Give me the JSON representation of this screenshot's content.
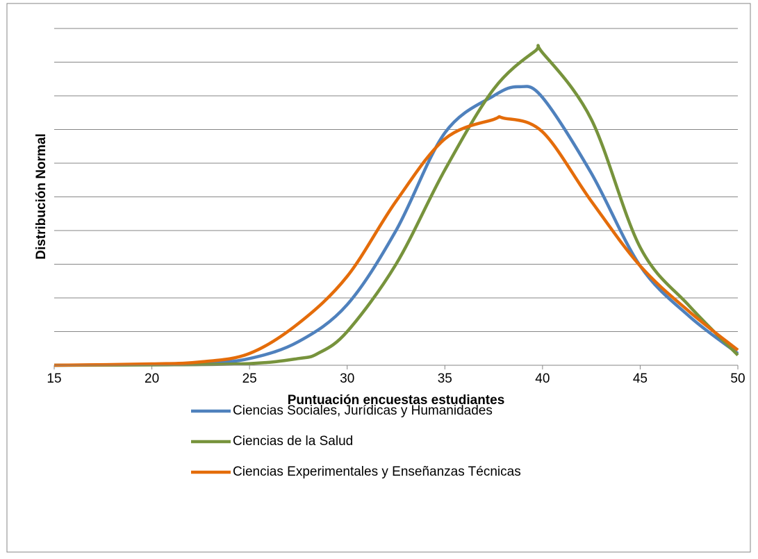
{
  "chart_data": {
    "type": "line",
    "x_label": "Puntuación encuestas estudiantes",
    "y_label": "Distribución Normal",
    "xlim": [
      15,
      50
    ],
    "xticks": [
      15,
      20,
      25,
      30,
      35,
      40,
      45,
      50
    ],
    "ylim": [
      0,
      10
    ],
    "yticks": [
      0,
      1,
      2,
      3,
      4,
      5,
      6,
      7,
      8,
      9,
      10
    ],
    "grid": true,
    "legend": "bottom",
    "series": [
      {
        "name": "Ciencias Sociales, Jurídicas y Humanidades",
        "color": "#4f81bd",
        "x": [
          15,
          20,
          22.5,
          25,
          27.5,
          30,
          32.5,
          35,
          37.5,
          38.8,
          40,
          42.5,
          45,
          47.5,
          50
        ],
        "values": [
          0,
          0.02,
          0.04,
          0.2,
          0.7,
          1.8,
          4.0,
          6.9,
          8.0,
          8.27,
          7.95,
          5.7,
          2.95,
          1.46,
          0.35
        ]
      },
      {
        "name": "Ciencias de la Salud",
        "color": "#77933c",
        "x": [
          15,
          20,
          25,
          27.5,
          28.5,
          30,
          32.5,
          35,
          37.5,
          39.6,
          40,
          42.5,
          45,
          47.5,
          50
        ],
        "values": [
          0,
          0.01,
          0.05,
          0.2,
          0.35,
          1.0,
          3.0,
          5.8,
          8.2,
          9.32,
          9.28,
          7.3,
          3.5,
          1.77,
          0.3
        ]
      },
      {
        "name": "Ciencias Experimentales y Enseñanzas Técnicas",
        "color": "#e46c0a",
        "x": [
          15,
          20,
          22.5,
          25,
          27.5,
          30,
          32.5,
          35,
          37.5,
          38,
          40,
          42.5,
          45,
          47.5,
          50
        ],
        "values": [
          0,
          0.04,
          0.1,
          0.35,
          1.24,
          2.64,
          4.87,
          6.72,
          7.3,
          7.34,
          6.93,
          4.87,
          2.95,
          1.6,
          0.45
        ]
      }
    ]
  }
}
